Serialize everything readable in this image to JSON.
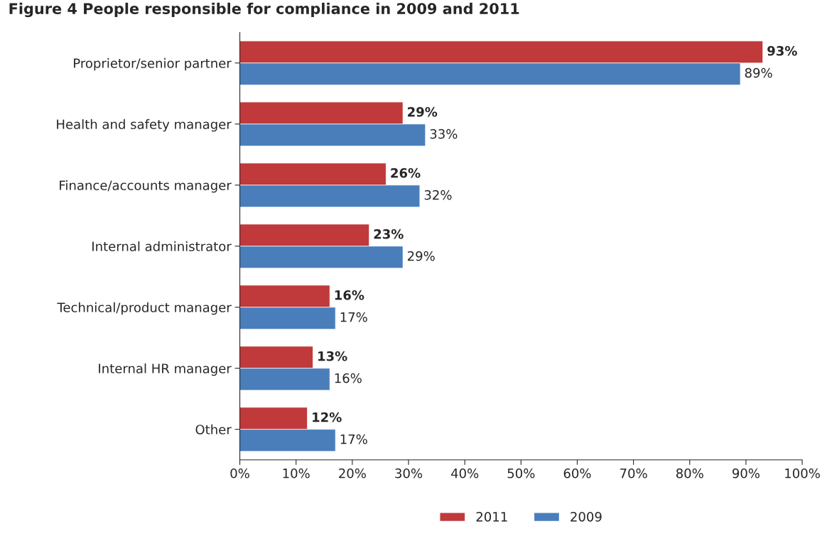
{
  "chart_data": {
    "type": "bar",
    "orientation": "horizontal",
    "title": "Figure 4 People responsible for compliance in 2009 and 2011",
    "categories": [
      "Proprietor/senior partner",
      "Health and safety manager",
      "Finance/accounts manager",
      "Internal administrator",
      "Technical/product manager",
      "Internal HR manager",
      "Other"
    ],
    "series": [
      {
        "name": "2011",
        "color": "#c0393b",
        "values": [
          93,
          29,
          26,
          23,
          16,
          13,
          12
        ],
        "value_labels": [
          "93%",
          "29%",
          "26%",
          "23%",
          "16%",
          "13%",
          "12%"
        ]
      },
      {
        "name": "2009",
        "color": "#4a7ebb",
        "values": [
          89,
          33,
          32,
          29,
          17,
          16,
          17
        ],
        "value_labels": [
          "89%",
          "33%",
          "32%",
          "29%",
          "17%",
          "16%",
          "17%"
        ]
      }
    ],
    "xlim": [
      0,
      100
    ],
    "xticks": [
      {
        "value": 0,
        "label": "0%"
      },
      {
        "value": 10,
        "label": "10%"
      },
      {
        "value": 20,
        "label": "20%"
      },
      {
        "value": 30,
        "label": "30%"
      },
      {
        "value": 40,
        "label": "40%"
      },
      {
        "value": 50,
        "label": "50%"
      },
      {
        "value": 60,
        "label": "60%"
      },
      {
        "value": 70,
        "label": "70%"
      },
      {
        "value": 80,
        "label": "80%"
      },
      {
        "value": 90,
        "label": "90%"
      },
      {
        "value": 100,
        "label": "100%"
      }
    ],
    "grid": false,
    "legend": "bottom"
  }
}
